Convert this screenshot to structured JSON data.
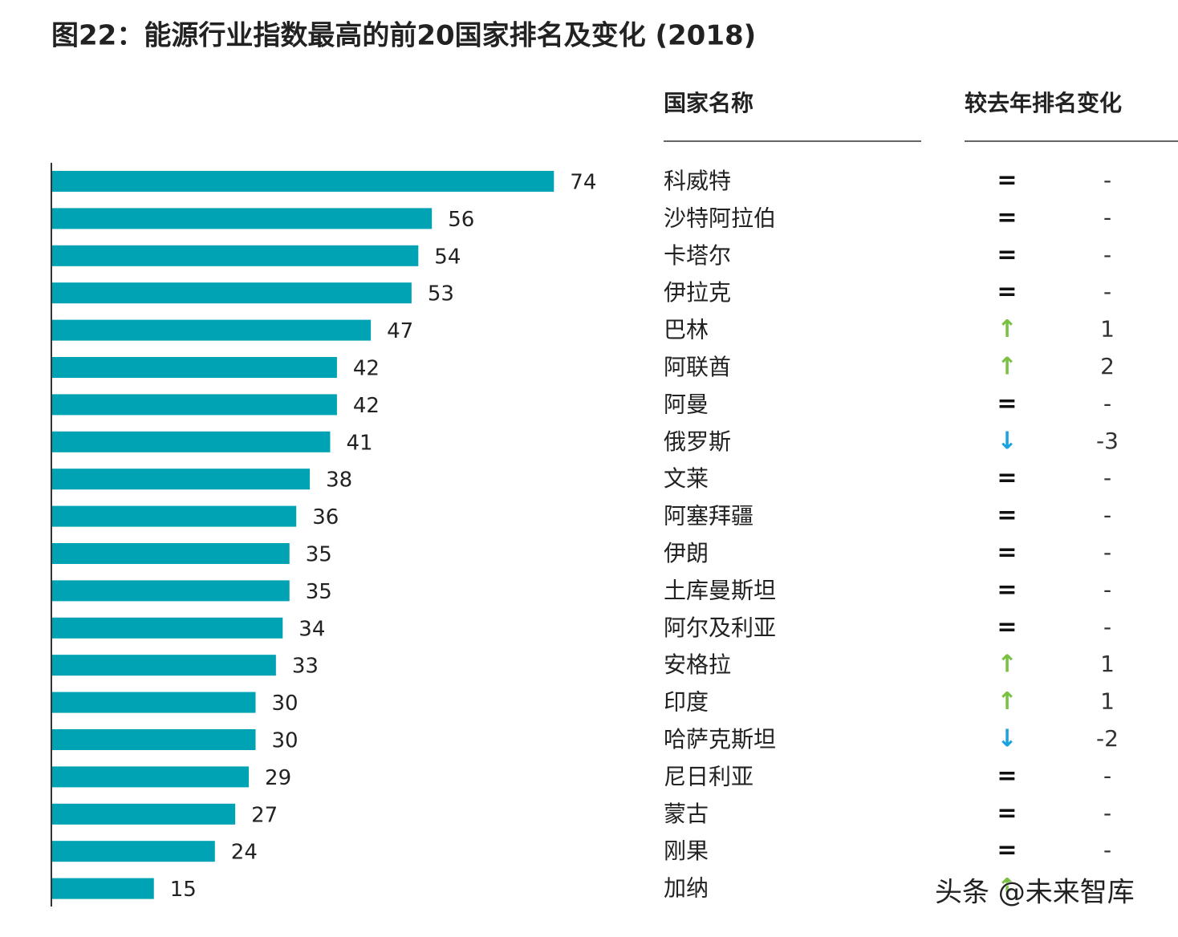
{
  "chart_data": {
    "type": "bar",
    "orientation": "horizontal",
    "title": "图22：能源行业指数最高的前20国家排名及变化 (2018)",
    "name_header": "国家名称",
    "change_header": "较去年排名变化",
    "categories": [
      "科威特",
      "沙特阿拉伯",
      "卡塔尔",
      "伊拉克",
      "巴林",
      "阿联酋",
      "阿曼",
      "俄罗斯",
      "文莱",
      "阿塞拜疆",
      "伊朗",
      "土库曼斯坦",
      "阿尔及利亚",
      "安格拉",
      "印度",
      "哈萨克斯坦",
      "尼日利亚",
      "蒙古",
      "刚果",
      "加纳"
    ],
    "values": [
      74,
      56,
      54,
      53,
      47,
      42,
      42,
      41,
      38,
      36,
      35,
      35,
      34,
      33,
      30,
      30,
      29,
      27,
      24,
      15
    ],
    "color": "#00a3b4",
    "xlim": [
      0,
      80
    ],
    "symbols": [
      "=",
      "=",
      "=",
      "=",
      "↑",
      "↑",
      "=",
      "↓",
      "=",
      "=",
      "=",
      "=",
      "=",
      "↑",
      "↑",
      "↓",
      "=",
      "=",
      "=",
      "↑"
    ],
    "changes": [
      "-",
      "-",
      "-",
      "-",
      "1",
      "2",
      "-",
      "-3",
      "-",
      "-",
      "-",
      "-",
      "-",
      "1",
      "1",
      "-2",
      "-",
      "-",
      "-",
      null
    ],
    "up_color": "#7ac143",
    "down_color": "#1aa3e0",
    "same_color": "#111111",
    "watermark": "头条 @未来智库"
  }
}
